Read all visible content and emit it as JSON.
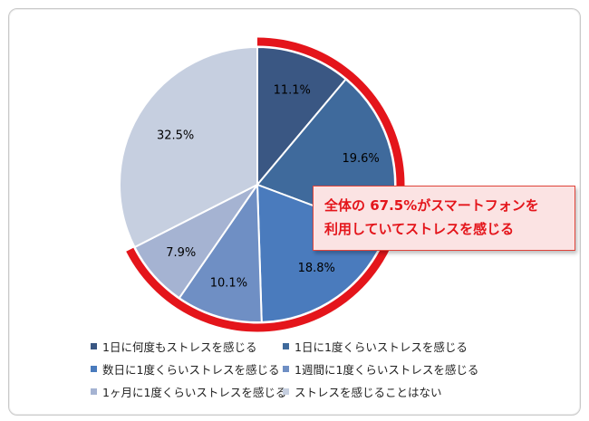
{
  "chart_data": {
    "type": "pie",
    "categories": [
      "1日に何度もストレスを感じる",
      "1日に1度くらいストレスを感じる",
      "数日に1度くらいストレスを感じる",
      "1週間に1度くらいストレスを感じる",
      "1ヶ月に1度くらいストレスを感じる",
      "ストレスを感じることはない"
    ],
    "values": [
      11.1,
      19.6,
      18.8,
      10.1,
      7.9,
      32.5
    ],
    "value_labels": [
      "11.1%",
      "19.6%",
      "18.8%",
      "10.1%",
      "7.9%",
      "32.5%"
    ],
    "colors": [
      "#3a5783",
      "#3f6a9c",
      "#4a7bbd",
      "#6f8fc4",
      "#a5b3d2",
      "#c6cfe0"
    ],
    "highlight_color": "#e4151b",
    "legend_position": "bottom",
    "annotation": {
      "line1": "全体の 67.5%がスマートフォンを",
      "line2": "利用していてストレスを感じる"
    }
  }
}
